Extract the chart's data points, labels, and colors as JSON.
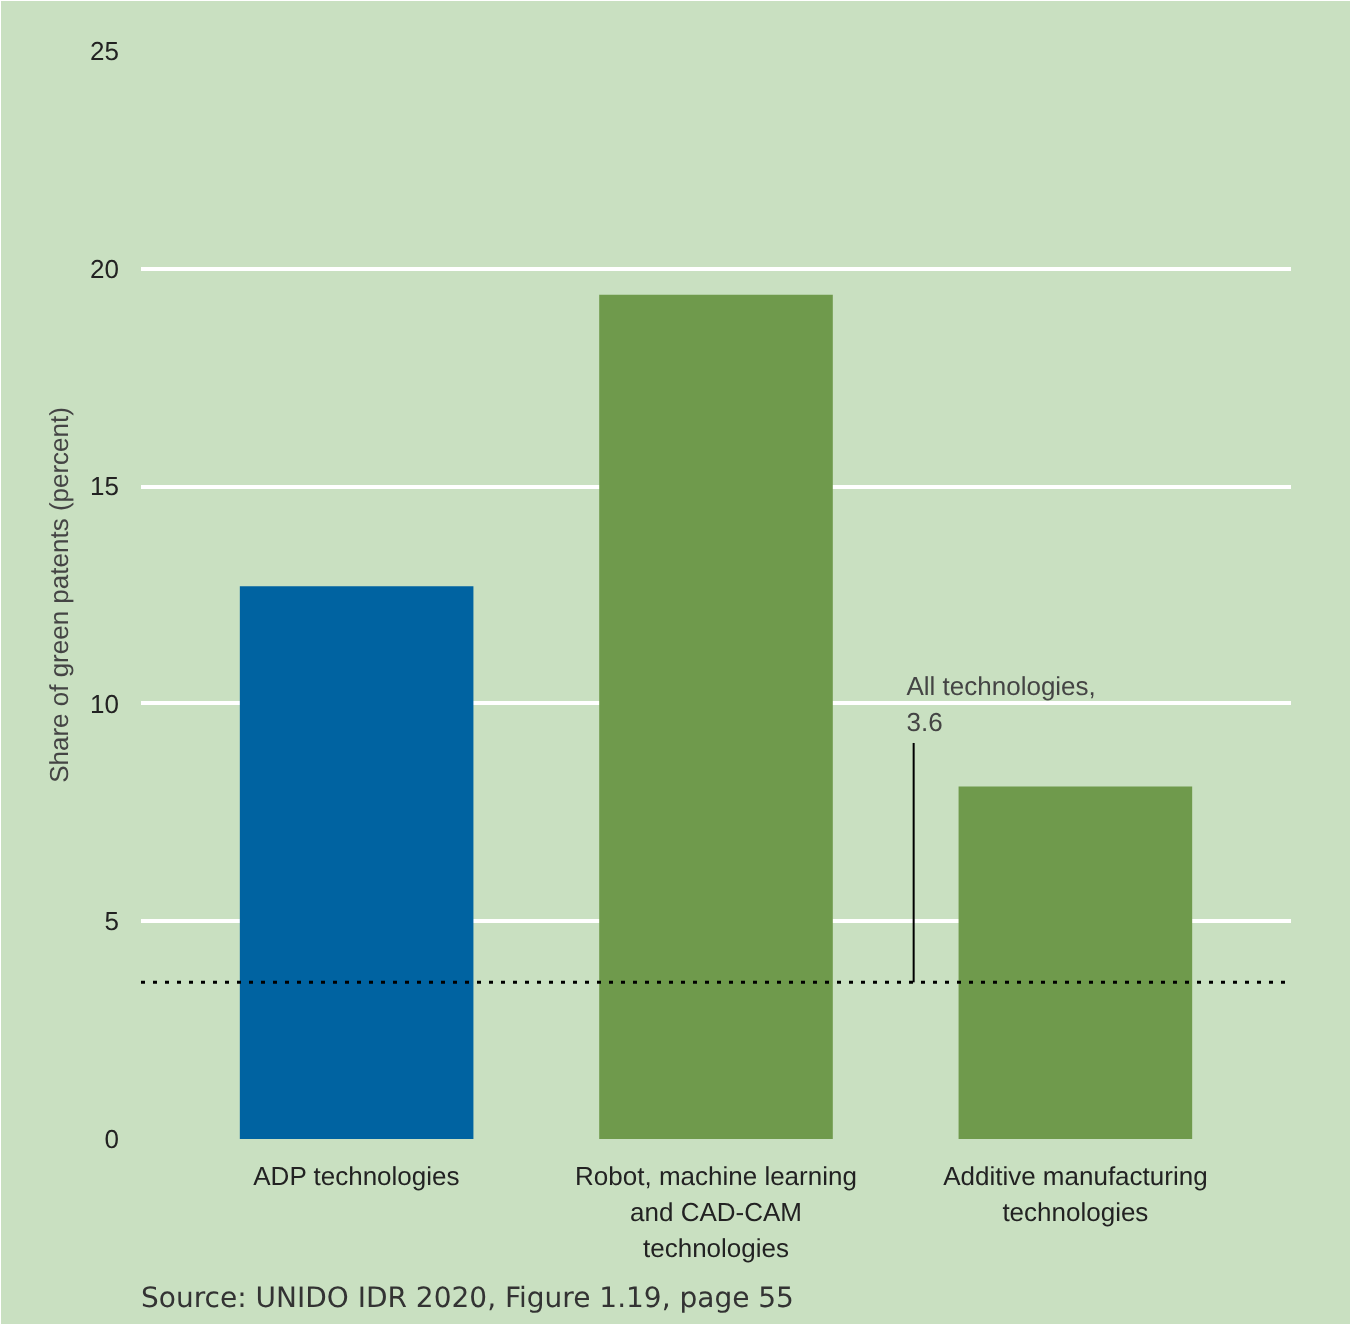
{
  "chart_data": {
    "type": "bar",
    "ylabel": "Share of green patents (percent)",
    "categories": [
      "ADP technologies",
      "Robot, machine learning and CAD-CAM technologies",
      "Additive manufacturing technologies"
    ],
    "values": [
      12.7,
      19.4,
      8.1
    ],
    "colors": [
      "#0063a1",
      "#6f9a4c",
      "#6f9a4c"
    ],
    "ylim": [
      0,
      25
    ],
    "yticks": [
      0,
      5,
      10,
      15,
      20,
      25
    ],
    "grid": "y",
    "ref_lines": [
      {
        "axis": "y",
        "value": 3.6,
        "label": "All technologies,\n3.6",
        "color": "#000000",
        "line_style": "dotted"
      }
    ],
    "annotations": [
      "Source: UNIDO IDR 2020, Figure 1.19, page 55"
    ]
  }
}
